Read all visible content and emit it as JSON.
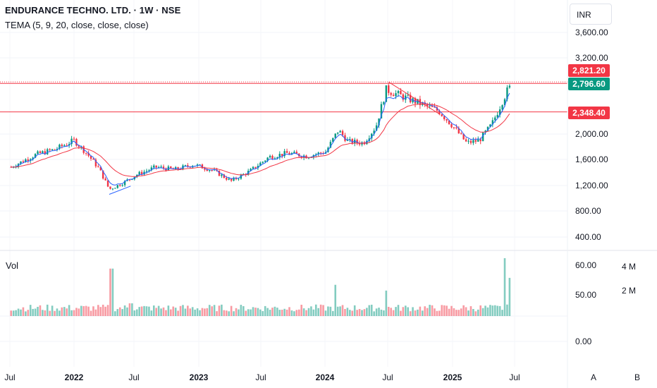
{
  "header": {
    "title": "ENDURANCE TECHNO. LTD. · 1W · NSE",
    "indicator": "TEMA (5, 9, 20, close, close, close)",
    "currency": "INR"
  },
  "volume_pane": {
    "label": "Vol"
  },
  "price_tags": [
    {
      "value": "2,821.20",
      "color": "#f23645"
    },
    {
      "value": "2,796.60",
      "color": "#089981"
    },
    {
      "value": "2,348.40",
      "color": "#f23645"
    }
  ],
  "corner_buttons": [
    "A",
    "B"
  ],
  "chart_data": {
    "type": "candlestick",
    "title": "ENDURANCE TECHNO. LTD. · 1W · NSE",
    "price_axis": {
      "ticks": [
        "3,600.00",
        "3,200.00",
        "2,000.00",
        "1,600.00",
        "1,200.00",
        "800.00",
        "400.00"
      ],
      "ylim": [
        200,
        3900
      ]
    },
    "volume_axis": {
      "ticks": [
        "60.00",
        "50.00",
        "0.00"
      ],
      "secondary_ticks": [
        "4 M",
        "2 M"
      ]
    },
    "x_axis": {
      "ticks": [
        {
          "label": "Jul",
          "bold": false
        },
        {
          "label": "2022",
          "bold": true
        },
        {
          "label": "Jul",
          "bold": false
        },
        {
          "label": "2023",
          "bold": true
        },
        {
          "label": "Jul",
          "bold": false
        },
        {
          "label": "2024",
          "bold": true
        },
        {
          "label": "Jul",
          "bold": false
        },
        {
          "label": "2025",
          "bold": true
        },
        {
          "label": "Jul",
          "bold": false
        }
      ]
    },
    "horizontal_lines": [
      {
        "price": 2821.2,
        "color": "#f23645",
        "style": "dotted"
      },
      {
        "price": 2796.6,
        "color": "#f23645",
        "style": "solid"
      },
      {
        "price": 2348.4,
        "color": "#f23645",
        "style": "solid"
      }
    ],
    "price_anchors": [
      [
        2021.5,
        1480
      ],
      [
        2021.7,
        1680
      ],
      [
        2021.85,
        1760
      ],
      [
        2022.0,
        1900
      ],
      [
        2022.1,
        1700
      ],
      [
        2022.2,
        1450
      ],
      [
        2022.28,
        1130
      ],
      [
        2022.38,
        1220
      ],
      [
        2022.5,
        1360
      ],
      [
        2022.65,
        1480
      ],
      [
        2022.8,
        1440
      ],
      [
        2022.95,
        1520
      ],
      [
        2023.1,
        1430
      ],
      [
        2023.25,
        1260
      ],
      [
        2023.4,
        1420
      ],
      [
        2023.55,
        1640
      ],
      [
        2023.7,
        1700
      ],
      [
        2023.85,
        1650
      ],
      [
        2024.0,
        1720
      ],
      [
        2024.1,
        2060
      ],
      [
        2024.18,
        1880
      ],
      [
        2024.3,
        1860
      ],
      [
        2024.4,
        2120
      ],
      [
        2024.48,
        2700
      ],
      [
        2024.6,
        2600
      ],
      [
        2024.75,
        2480
      ],
      [
        2024.9,
        2360
      ],
      [
        2025.0,
        2150
      ],
      [
        2025.12,
        1860
      ],
      [
        2025.22,
        1900
      ],
      [
        2025.32,
        2150
      ],
      [
        2025.4,
        2500
      ],
      [
        2025.47,
        2796.6
      ]
    ],
    "tema_series": [
      {
        "name": "TEMA 5",
        "color": "#2962ff"
      },
      {
        "name": "TEMA 9",
        "color": "#f23645"
      }
    ],
    "volume_spikes": [
      {
        "x": 2022.3,
        "volume": 0.82
      },
      {
        "x": 2022.45,
        "volume": 0.22
      },
      {
        "x": 2024.08,
        "volume": 0.54
      },
      {
        "x": 2024.48,
        "volume": 0.44
      },
      {
        "x": 2025.42,
        "volume": 1.0
      },
      {
        "x": 2025.47,
        "volume": 0.66
      }
    ]
  }
}
